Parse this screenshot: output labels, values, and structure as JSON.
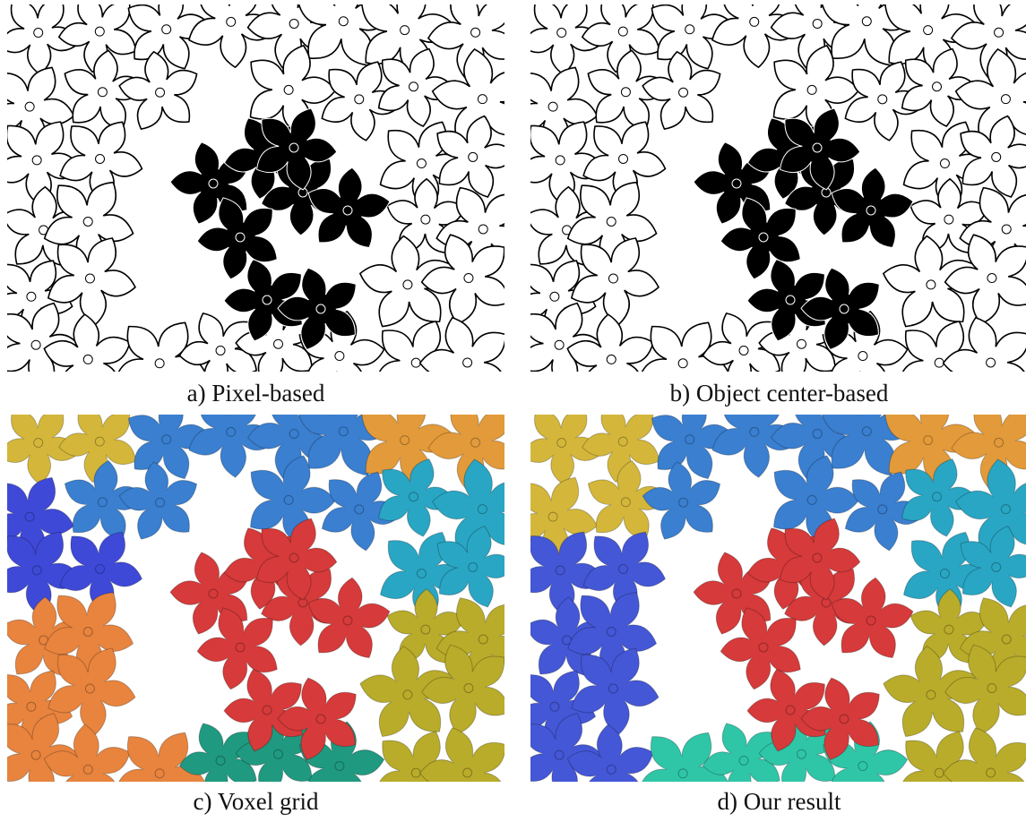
{
  "figure": {
    "panels": [
      {
        "caption": "a) Pixel-based"
      },
      {
        "caption": "b) Object center-based"
      },
      {
        "caption": "c) Voxel grid"
      },
      {
        "caption": "d) Our result"
      }
    ]
  }
}
